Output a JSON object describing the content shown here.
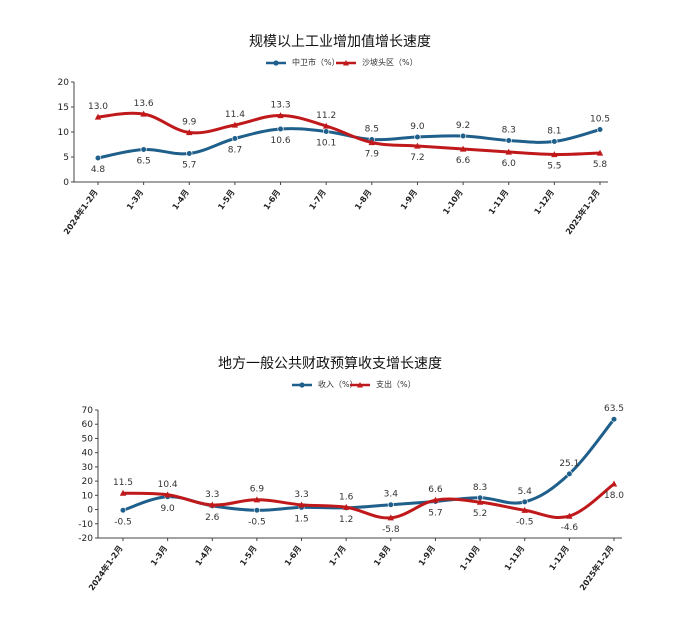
{
  "chart_data": [
    {
      "type": "line",
      "title": "规模以上工业增加值增长速度",
      "categories": [
        "2024年1-2月",
        "1-3月",
        "1-4月",
        "1-5月",
        "1-6月",
        "1-7月",
        "1-8月",
        "1-9月",
        "1-10月",
        "1-11月",
        "1-12月",
        "2025年1-2月"
      ],
      "series": [
        {
          "name": "中卫市（%）",
          "color": "#1f5f8b",
          "values": [
            4.8,
            6.5,
            5.7,
            8.7,
            10.6,
            10.1,
            8.5,
            9.0,
            9.2,
            8.3,
            8.1,
            10.5
          ],
          "labels": [
            "4.8",
            "6.5",
            "5.7",
            "8.7",
            "10.6",
            "10.1",
            "8.5",
            "9.0",
            "9.2",
            "8.3",
            "8.1",
            "10.5"
          ]
        },
        {
          "name": "沙坡头区（%）",
          "color": "#c0191b",
          "values": [
            13.0,
            13.6,
            9.9,
            11.4,
            13.3,
            11.2,
            7.9,
            7.2,
            6.6,
            6.0,
            5.5,
            5.8
          ],
          "labels": [
            "13.0",
            "13.6",
            "9.9",
            "11.4",
            "13.3",
            "11.2",
            "7.9",
            "7.2",
            "6.6",
            "6.0",
            "5.5",
            "5.8"
          ]
        }
      ],
      "ylim": [
        0,
        20
      ],
      "yticks": [
        "0",
        "5",
        "10",
        "15",
        "20"
      ],
      "legend": "top-center",
      "grid": false
    },
    {
      "type": "line",
      "title": "地方一般公共财政预算收支增长速度",
      "categories": [
        "2024年1-2月",
        "1-3月",
        "1-4月",
        "1-5月",
        "1-6月",
        "1-7月",
        "1-8月",
        "1-9月",
        "1-10月",
        "1-11月",
        "1-12月",
        "2025年1-2月"
      ],
      "series": [
        {
          "name": "收入（%）",
          "color": "#1f5f8b",
          "values": [
            -0.5,
            9.0,
            2.6,
            -0.5,
            1.5,
            1.2,
            3.4,
            5.7,
            8.3,
            5.4,
            25.1,
            63.5
          ],
          "labels": [
            "-0.5",
            "9.0",
            "2.6",
            "-0.5",
            "1.5",
            "1.2",
            "3.4",
            "5.7",
            "8.3",
            "5.4",
            "25.1",
            "63.5"
          ]
        },
        {
          "name": "支出（%）",
          "color": "#c0191b",
          "values": [
            11.5,
            10.4,
            3.3,
            6.9,
            3.3,
            1.6,
            -5.8,
            6.6,
            5.2,
            -0.5,
            -4.6,
            18.0
          ],
          "labels": [
            "11.5",
            "10.4",
            "3.3",
            "6.9",
            "3.3",
            "1.6",
            "-5.8",
            "6.6",
            "5.2",
            "-0.5",
            "-4.6",
            "18.0"
          ]
        }
      ],
      "ylim": [
        -20,
        70
      ],
      "yticks": [
        "-20",
        "-10",
        "0",
        "10",
        "20",
        "30",
        "40",
        "50",
        "60",
        "70"
      ],
      "legend": "top-center",
      "grid": false
    }
  ]
}
